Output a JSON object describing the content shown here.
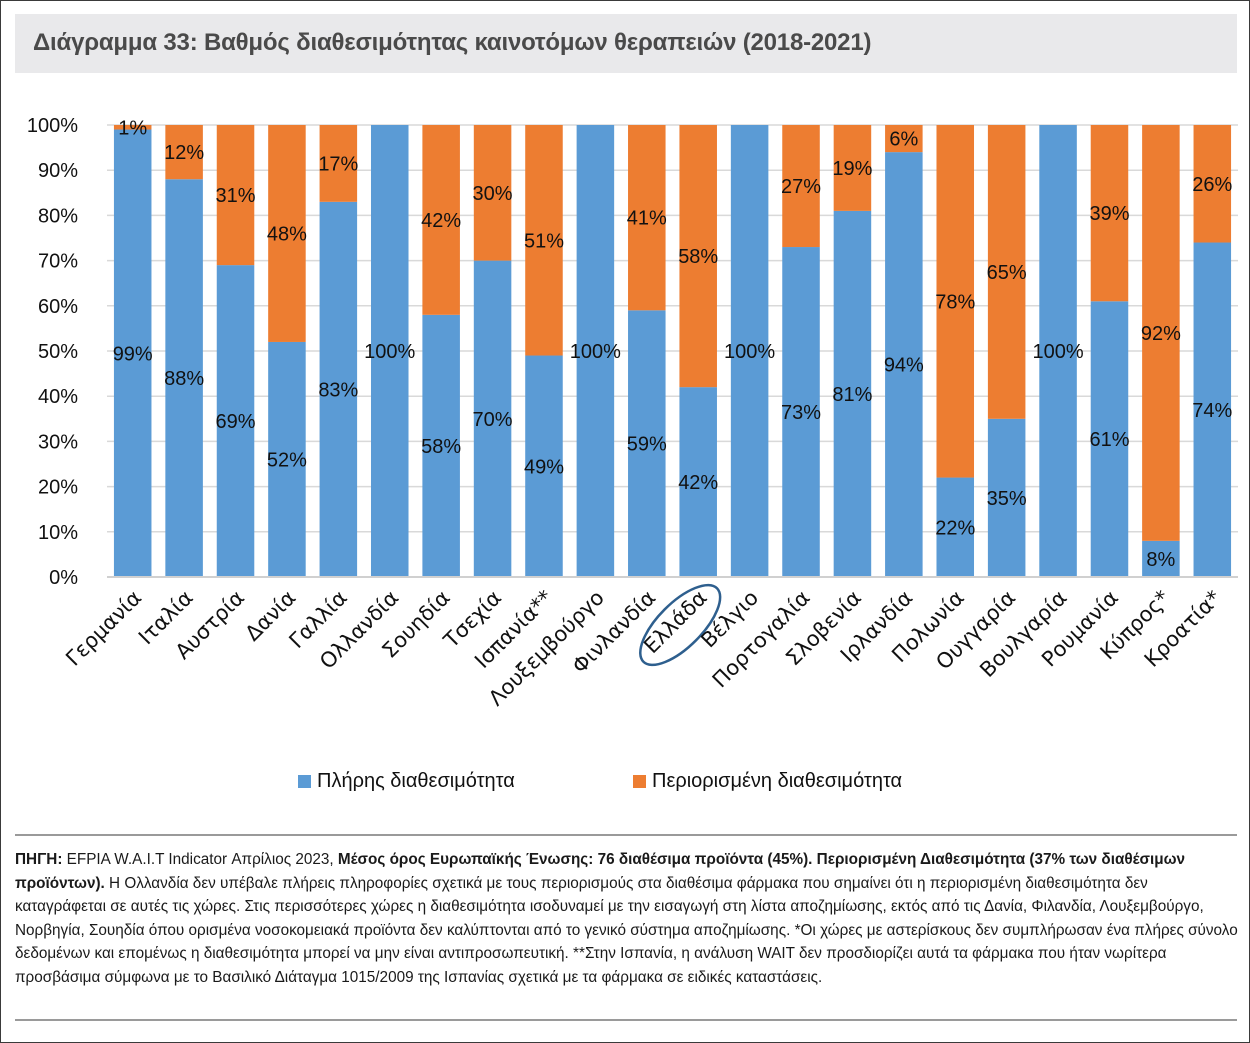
{
  "title": "Διάγραμμα 33: Βαθμός διαθεσιμότητας καινοτόμων θεραπειών (2018-2021)",
  "chart_data": {
    "type": "bar",
    "stacked": true,
    "percent_stacked": true,
    "title": "Διάγραμμα 33: Βαθμός διαθεσιμότητας καινοτόμων θεραπειών (2018-2021)",
    "xlabel": "",
    "ylabel": "",
    "ylim": [
      0,
      100
    ],
    "yticks": [
      "0%",
      "10%",
      "20%",
      "30%",
      "40%",
      "50%",
      "60%",
      "70%",
      "80%",
      "90%",
      "100%"
    ],
    "grid": true,
    "legend_position": "bottom",
    "categories": [
      "Γερμανία",
      "Ιταλία",
      "Αυστρία",
      "Δανία",
      "Γαλλία",
      "Ολλανδία",
      "Σουηδία",
      "Τσεχία",
      "Ισπανία**",
      "Λουξεμβούργο",
      "Φινλανδία",
      "Ελλάδα",
      "Βέλγιο",
      "Πορτογαλία",
      "Σλοβενία",
      "Ιρλανδία",
      "Πολωνία",
      "Ουγγαρία",
      "Βουλγαρία",
      "Ρουμανία",
      "Κύπρος*",
      "Κροατία*"
    ],
    "highlighted_category": "Ελλάδα",
    "series": [
      {
        "name": "Πλήρης διαθεσιμότητα",
        "color": "#5b9bd5",
        "values": [
          99,
          88,
          69,
          52,
          83,
          100,
          58,
          70,
          49,
          100,
          59,
          42,
          100,
          73,
          81,
          94,
          22,
          35,
          100,
          61,
          8,
          74
        ]
      },
      {
        "name": "Περιορισμένη διαθεσιμότητα",
        "color": "#ed7d31",
        "values": [
          1,
          12,
          31,
          48,
          17,
          0,
          42,
          30,
          51,
          0,
          41,
          58,
          0,
          27,
          19,
          6,
          78,
          65,
          0,
          39,
          92,
          26
        ]
      }
    ],
    "data_labels": {
      "full": [
        "99%",
        "88%",
        "69%",
        "52%",
        "83%",
        "100%",
        "58%",
        "70%",
        "49%",
        "100%",
        "59%",
        "42%",
        "100%",
        "73%",
        "81%",
        "94%",
        "22%",
        "35%",
        "100%",
        "61%",
        "8%",
        "74%"
      ],
      "limited": [
        "1%",
        "12%",
        "31%",
        "48%",
        "17%",
        "",
        "42%",
        "30%",
        "51%",
        "",
        "41%",
        "58%",
        "",
        "27%",
        "19%",
        "6%",
        "78%",
        "65%",
        "",
        "39%",
        "92%",
        "26%"
      ]
    }
  },
  "legend": {
    "items": [
      {
        "label": "Πλήρης διαθεσιμότητα",
        "color": "#5b9bd5"
      },
      {
        "label": "Περιορισμένη διαθεσιμότητα",
        "color": "#ed7d31"
      }
    ]
  },
  "note": {
    "source_label": "ΠΗΓΗ:",
    "source_text": " EFPIA W.A.I.T Indicator Απρίλιος 2023, ",
    "bold_text": "Μέσος όρος Ευρωπαϊκής Ένωσης: 76 διαθέσιμα προϊόντα (45%). Περιορισμένη Διαθεσιμότητα (37% των διαθέσιμων προϊόντων).",
    "body_text": " Η Ολλανδία δεν υπέβαλε πλήρεις πληροφορίες σχετικά με τους περιορισμούς στα διαθέσιμα φάρμακα που σημαίνει ότι η περιορισμένη διαθεσιμότητα δεν καταγράφεται σε αυτές τις χώρες. Στις περισσότερες χώρες η διαθεσιμότητα ισοδυναμεί με την εισαγωγή στη λίστα αποζημίωσης, εκτός από τις Δανία, Φιλανδία, Λουξεμβούργο, Νορβηγία, Σουηδία όπου ορισμένα νοσοκομειακά προϊόντα δεν καλύπτονται από το γενικό σύστημα αποζημίωσης. *Οι χώρες με αστερίσκους δεν συμπλήρωσαν ένα πλήρες σύνολο δεδομένων και επομένως η διαθεσιμότητα μπορεί να μην είναι αντιπροσωπευτική. **Στην Ισπανία, η ανάλυση WAIT δεν προσδιορίζει αυτά τα φάρμακα που ήταν νωρίτερα προσβάσιμα σύμφωνα με το Βασιλικό Διάταγμα 1015/2009 της Ισπανίας σχετικά με τα φάρμακα σε ειδικές καταστάσεις."
  }
}
